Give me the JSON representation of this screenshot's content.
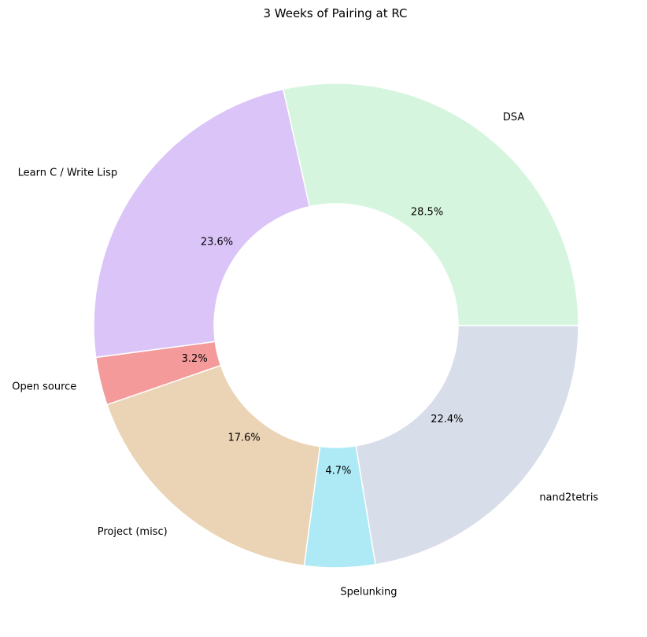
{
  "chart_data": {
    "type": "pie",
    "donut": true,
    "title": "3 Weeks of Pairing at RC",
    "counterclockwise": true,
    "start_angle_deg": 0,
    "slices": [
      {
        "label": "DSA",
        "value": 28.5,
        "pct_label": "28.5%",
        "color": "#d6f5de"
      },
      {
        "label": "Learn C / Write Lisp",
        "value": 23.6,
        "pct_label": "23.6%",
        "color": "#dac4f8"
      },
      {
        "label": "Open source",
        "value": 3.2,
        "pct_label": "3.2%",
        "color": "#f49a9b"
      },
      {
        "label": "Project (misc)",
        "value": 17.6,
        "pct_label": "17.6%",
        "color": "#ebd3b5"
      },
      {
        "label": "Spelunking",
        "value": 4.7,
        "pct_label": "4.7%",
        "color": "#aeeaf5"
      },
      {
        "label": "nand2tetris",
        "value": 22.4,
        "pct_label": "22.4%",
        "color": "#d7dde9"
      }
    ],
    "wedge_edge_color": "#ffffff",
    "legend": "none"
  }
}
